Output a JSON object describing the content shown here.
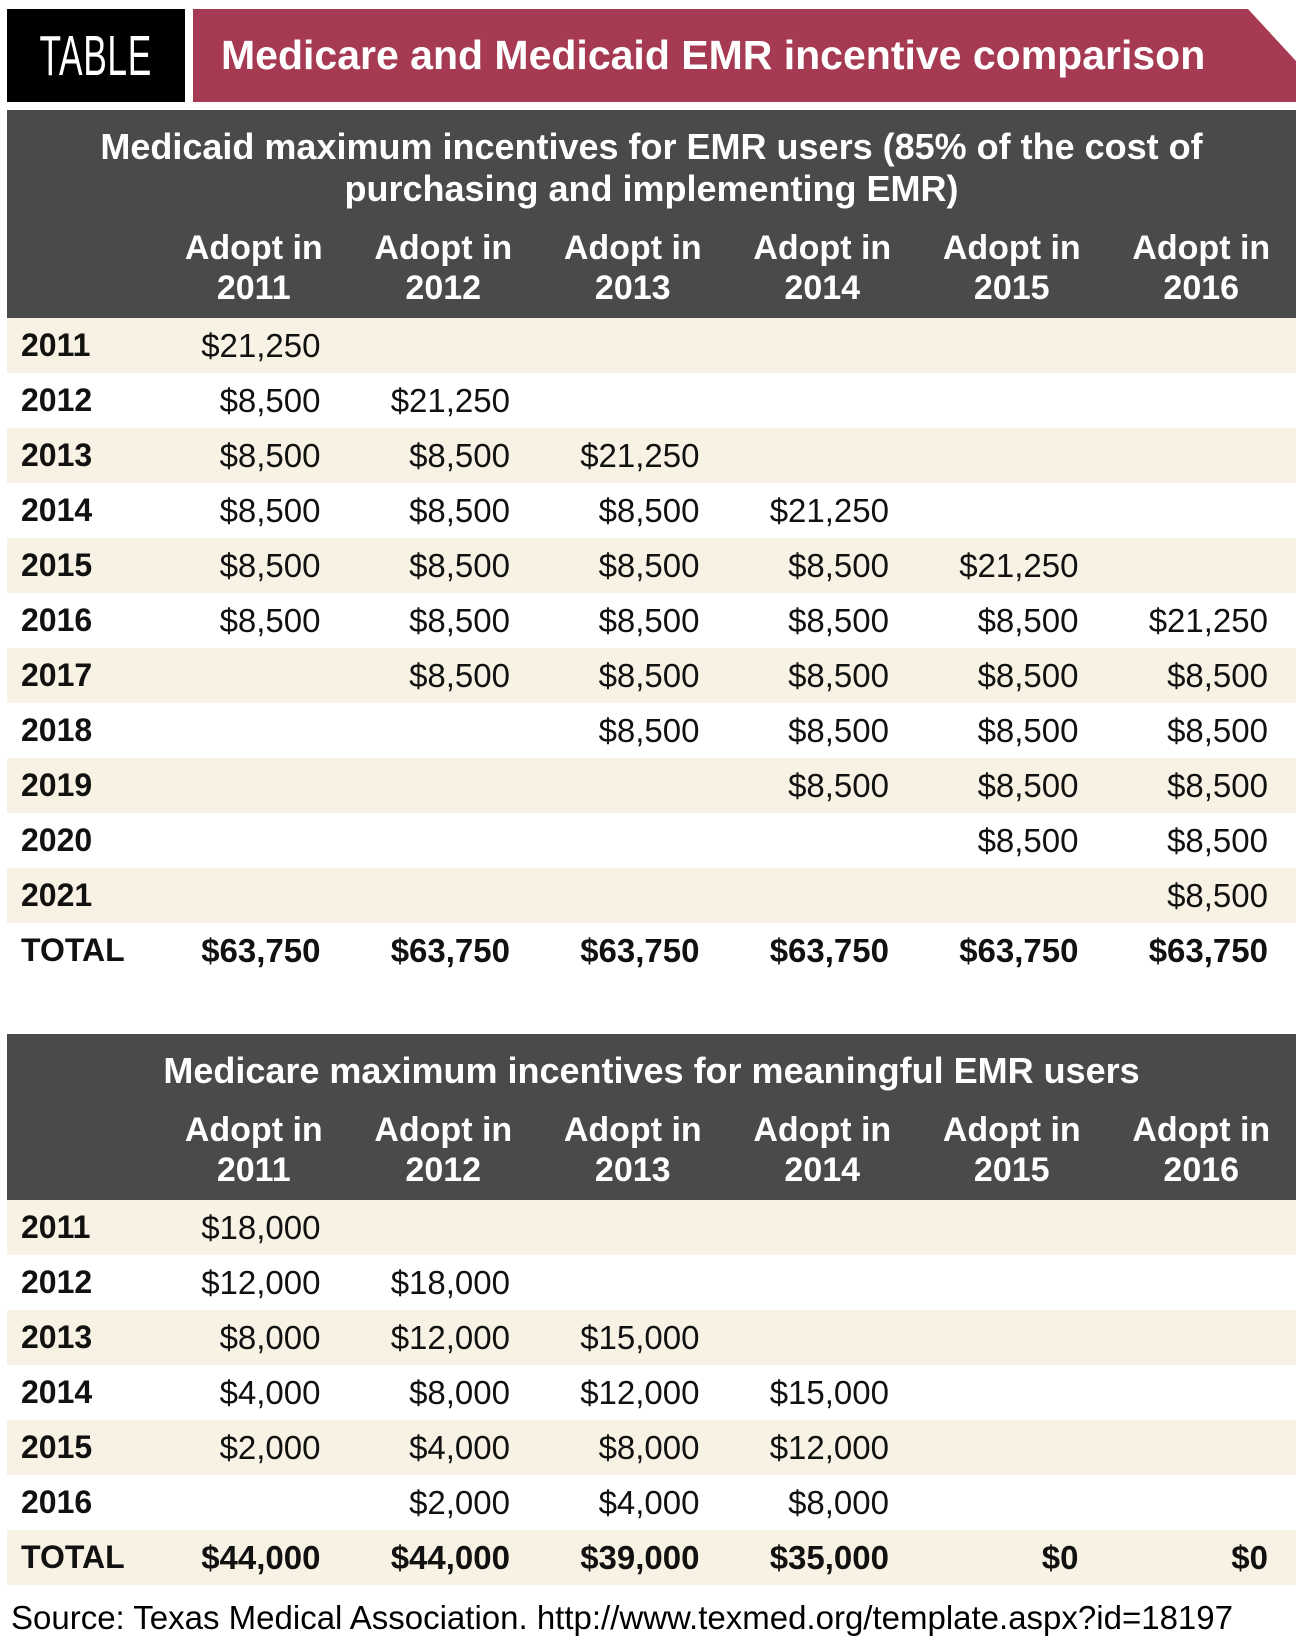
{
  "header": {
    "tag": "TABLE",
    "title": "Medicare and Medicaid EMR incentive comparison"
  },
  "colors": {
    "banner_maroon": "#a63a52",
    "tag_black": "#000000",
    "table_header_gray": "#4a4a4a",
    "row_cream": "#f7f2e3",
    "row_white": "#ffffff"
  },
  "source": {
    "text": "Source: Texas Medical Association. http://www.texmed.org/template.aspx?id=18197"
  },
  "chart_data": [
    {
      "type": "table",
      "title": "Medicaid maximum incentives for EMR users (85% of the cost of purchasing and implementing EMR)",
      "columns": [
        "Adopt in 2011",
        "Adopt in 2012",
        "Adopt in 2013",
        "Adopt in 2014",
        "Adopt in 2015",
        "Adopt in 2016"
      ],
      "rows": [
        {
          "label": "2011",
          "values": [
            "$21,250",
            "",
            "",
            "",
            "",
            ""
          ]
        },
        {
          "label": "2012",
          "values": [
            "$8,500",
            "$21,250",
            "",
            "",
            "",
            ""
          ]
        },
        {
          "label": "2013",
          "values": [
            "$8,500",
            "$8,500",
            "$21,250",
            "",
            "",
            ""
          ]
        },
        {
          "label": "2014",
          "values": [
            "$8,500",
            "$8,500",
            "$8,500",
            "$21,250",
            "",
            ""
          ]
        },
        {
          "label": "2015",
          "values": [
            "$8,500",
            "$8,500",
            "$8,500",
            "$8,500",
            "$21,250",
            ""
          ]
        },
        {
          "label": "2016",
          "values": [
            "$8,500",
            "$8,500",
            "$8,500",
            "$8,500",
            "$8,500",
            "$21,250"
          ]
        },
        {
          "label": "2017",
          "values": [
            "",
            "$8,500",
            "$8,500",
            "$8,500",
            "$8,500",
            "$8,500"
          ]
        },
        {
          "label": "2018",
          "values": [
            "",
            "",
            "$8,500",
            "$8,500",
            "$8,500",
            "$8,500"
          ]
        },
        {
          "label": "2019",
          "values": [
            "",
            "",
            "",
            "$8,500",
            "$8,500",
            "$8,500"
          ]
        },
        {
          "label": "2020",
          "values": [
            "",
            "",
            "",
            "",
            "$8,500",
            "$8,500"
          ]
        },
        {
          "label": "2021",
          "values": [
            "",
            "",
            "",
            "",
            "",
            "$8,500"
          ]
        },
        {
          "label": "TOTAL",
          "values": [
            "$63,750",
            "$63,750",
            "$63,750",
            "$63,750",
            "$63,750",
            "$63,750"
          ]
        }
      ]
    },
    {
      "type": "table",
      "title": "Medicare maximum incentives for meaningful EMR users",
      "columns": [
        "Adopt in 2011",
        "Adopt in 2012",
        "Adopt in 2013",
        "Adopt in 2014",
        "Adopt in 2015",
        "Adopt in 2016"
      ],
      "rows": [
        {
          "label": "2011",
          "values": [
            "$18,000",
            "",
            "",
            "",
            "",
            ""
          ]
        },
        {
          "label": "2012",
          "values": [
            "$12,000",
            "$18,000",
            "",
            "",
            "",
            ""
          ]
        },
        {
          "label": "2013",
          "values": [
            "$8,000",
            "$12,000",
            "$15,000",
            "",
            "",
            ""
          ]
        },
        {
          "label": "2014",
          "values": [
            "$4,000",
            "$8,000",
            "$12,000",
            "$15,000",
            "",
            ""
          ]
        },
        {
          "label": "2015",
          "values": [
            "$2,000",
            "$4,000",
            "$8,000",
            "$12,000",
            "",
            ""
          ]
        },
        {
          "label": "2016",
          "values": [
            "",
            "$2,000",
            "$4,000",
            "$8,000",
            "",
            ""
          ]
        },
        {
          "label": "TOTAL",
          "values": [
            "$44,000",
            "$44,000",
            "$39,000",
            "$35,000",
            "$0",
            "$0"
          ]
        }
      ]
    }
  ]
}
